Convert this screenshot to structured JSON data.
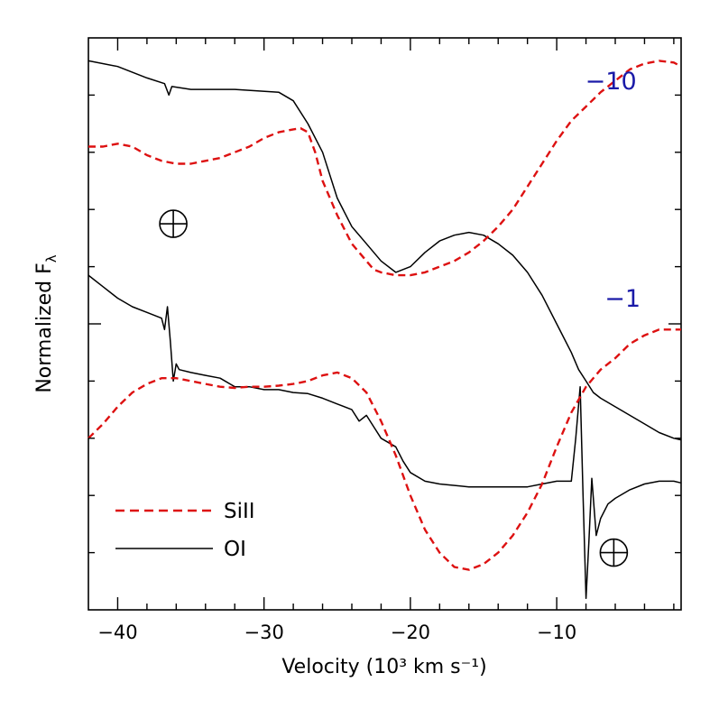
{
  "chart_data": {
    "type": "line",
    "xlabel": "Velocity (10³ km s⁻¹)",
    "ylabel": "Normalized F",
    "ylabel_subscript": "λ",
    "xlim": [
      -42,
      -1.5
    ],
    "ylim": [
      0,
      1
    ],
    "x_ticks": [
      -40,
      -30,
      -20,
      -10
    ],
    "x_tick_labels": [
      "−40",
      "−30",
      "−20",
      "−10"
    ],
    "y_ticks_labeled": false,
    "colors": {
      "SiII": "#dd1111",
      "OI": "#000000",
      "epoch": "#1a1aa8"
    },
    "epoch_labels": [
      {
        "text": "−10",
        "x": -6.3,
        "y": 0.91
      },
      {
        "text": "−1",
        "x": -5.5,
        "y": 0.53
      }
    ],
    "telluric_markers": [
      {
        "x": -36.2,
        "y": 0.675
      },
      {
        "x": -6.1,
        "y": 0.1
      }
    ],
    "legend": [
      {
        "label": "SiII",
        "style": "dashed",
        "color": "#dd1111"
      },
      {
        "label": "OI",
        "style": "solid",
        "color": "#000000"
      }
    ],
    "series": [
      {
        "name": "OI (day −10)",
        "epoch": "−10",
        "style": "solid",
        "color": "#000000",
        "points": [
          [
            -42,
            0.96
          ],
          [
            -40,
            0.95
          ],
          [
            -38,
            0.93
          ],
          [
            -36.8,
            0.92
          ],
          [
            -36.5,
            0.9
          ],
          [
            -36.3,
            0.915
          ],
          [
            -35,
            0.91
          ],
          [
            -32,
            0.91
          ],
          [
            -29,
            0.905
          ],
          [
            -28,
            0.89
          ],
          [
            -27,
            0.85
          ],
          [
            -26,
            0.8
          ],
          [
            -25,
            0.72
          ],
          [
            -24,
            0.67
          ],
          [
            -23,
            0.64
          ],
          [
            -22,
            0.61
          ],
          [
            -21,
            0.59
          ],
          [
            -20,
            0.6
          ],
          [
            -19,
            0.625
          ],
          [
            -18,
            0.645
          ],
          [
            -17,
            0.655
          ],
          [
            -16,
            0.66
          ],
          [
            -15,
            0.655
          ],
          [
            -14,
            0.64
          ],
          [
            -13,
            0.62
          ],
          [
            -12,
            0.59
          ],
          [
            -11,
            0.55
          ],
          [
            -10,
            0.5
          ],
          [
            -9,
            0.45
          ],
          [
            -8.5,
            0.42
          ],
          [
            -8,
            0.4
          ],
          [
            -7.5,
            0.38
          ],
          [
            -7,
            0.37
          ],
          [
            -6,
            0.355
          ],
          [
            -5,
            0.34
          ],
          [
            -4,
            0.325
          ],
          [
            -3,
            0.31
          ],
          [
            -2,
            0.3
          ],
          [
            -1.5,
            0.297
          ]
        ]
      },
      {
        "name": "SiII (day −10)",
        "epoch": "−10",
        "style": "dashed",
        "color": "#dd1111",
        "points": [
          [
            -42,
            0.81
          ],
          [
            -41,
            0.81
          ],
          [
            -40,
            0.815
          ],
          [
            -39,
            0.81
          ],
          [
            -38,
            0.795
          ],
          [
            -37,
            0.785
          ],
          [
            -36,
            0.78
          ],
          [
            -35,
            0.78
          ],
          [
            -34,
            0.785
          ],
          [
            -33,
            0.79
          ],
          [
            -32,
            0.8
          ],
          [
            -31,
            0.81
          ],
          [
            -30,
            0.825
          ],
          [
            -29,
            0.835
          ],
          [
            -28,
            0.84
          ],
          [
            -27.5,
            0.842
          ],
          [
            -27,
            0.835
          ],
          [
            -26.5,
            0.8
          ],
          [
            -26,
            0.75
          ],
          [
            -25,
            0.69
          ],
          [
            -24,
            0.64
          ],
          [
            -23,
            0.61
          ],
          [
            -22.5,
            0.595
          ],
          [
            -22,
            0.59
          ],
          [
            -21,
            0.585
          ],
          [
            -20,
            0.585
          ],
          [
            -19,
            0.59
          ],
          [
            -18,
            0.6
          ],
          [
            -17,
            0.61
          ],
          [
            -16,
            0.625
          ],
          [
            -15,
            0.645
          ],
          [
            -14,
            0.67
          ],
          [
            -13,
            0.7
          ],
          [
            -12,
            0.74
          ],
          [
            -11,
            0.78
          ],
          [
            -10,
            0.82
          ],
          [
            -9,
            0.855
          ],
          [
            -8,
            0.88
          ],
          [
            -7,
            0.905
          ],
          [
            -6,
            0.925
          ],
          [
            -5,
            0.945
          ],
          [
            -4,
            0.955
          ],
          [
            -3,
            0.96
          ],
          [
            -2,
            0.957
          ],
          [
            -1.5,
            0.95
          ]
        ]
      },
      {
        "name": "OI (day −1)",
        "epoch": "−1",
        "style": "solid",
        "color": "#000000",
        "points": [
          [
            -42,
            0.585
          ],
          [
            -41,
            0.565
          ],
          [
            -40,
            0.545
          ],
          [
            -39,
            0.53
          ],
          [
            -38,
            0.52
          ],
          [
            -37,
            0.51
          ],
          [
            -36.8,
            0.49
          ],
          [
            -36.6,
            0.53
          ],
          [
            -36.4,
            0.47
          ],
          [
            -36.2,
            0.4
          ],
          [
            -36,
            0.43
          ],
          [
            -35.8,
            0.42
          ],
          [
            -35,
            0.415
          ],
          [
            -34,
            0.41
          ],
          [
            -33,
            0.405
          ],
          [
            -32,
            0.39
          ],
          [
            -31,
            0.39
          ],
          [
            -30,
            0.385
          ],
          [
            -29,
            0.385
          ],
          [
            -28,
            0.38
          ],
          [
            -27,
            0.378
          ],
          [
            -26,
            0.37
          ],
          [
            -25,
            0.36
          ],
          [
            -24,
            0.35
          ],
          [
            -23.5,
            0.33
          ],
          [
            -23,
            0.34
          ],
          [
            -22.5,
            0.32
          ],
          [
            -22,
            0.3
          ],
          [
            -21,
            0.285
          ],
          [
            -20.5,
            0.26
          ],
          [
            -20,
            0.24
          ],
          [
            -19,
            0.225
          ],
          [
            -18,
            0.22
          ],
          [
            -16,
            0.215
          ],
          [
            -14,
            0.215
          ],
          [
            -12,
            0.215
          ],
          [
            -11,
            0.22
          ],
          [
            -10,
            0.225
          ],
          [
            -9,
            0.225
          ],
          [
            -8.7,
            0.3
          ],
          [
            -8.4,
            0.39
          ],
          [
            -8.2,
            0.2
          ],
          [
            -8,
            0.02
          ],
          [
            -7.8,
            0.12
          ],
          [
            -7.6,
            0.23
          ],
          [
            -7.3,
            0.13
          ],
          [
            -7,
            0.16
          ],
          [
            -6.5,
            0.185
          ],
          [
            -6,
            0.195
          ],
          [
            -5,
            0.21
          ],
          [
            -4,
            0.22
          ],
          [
            -3,
            0.225
          ],
          [
            -2,
            0.225
          ],
          [
            -1.5,
            0.222
          ]
        ]
      },
      {
        "name": "SiII (day −1)",
        "epoch": "−1",
        "style": "dashed",
        "color": "#dd1111",
        "points": [
          [
            -42,
            0.3
          ],
          [
            -41,
            0.325
          ],
          [
            -40,
            0.355
          ],
          [
            -39,
            0.38
          ],
          [
            -38,
            0.395
          ],
          [
            -37,
            0.405
          ],
          [
            -36,
            0.405
          ],
          [
            -35,
            0.4
          ],
          [
            -34,
            0.395
          ],
          [
            -33,
            0.39
          ],
          [
            -32,
            0.388
          ],
          [
            -31,
            0.39
          ],
          [
            -30,
            0.39
          ],
          [
            -29,
            0.392
          ],
          [
            -28,
            0.395
          ],
          [
            -27,
            0.4
          ],
          [
            -26,
            0.41
          ],
          [
            -25,
            0.415
          ],
          [
            -24,
            0.405
          ],
          [
            -23,
            0.38
          ],
          [
            -22,
            0.33
          ],
          [
            -21,
            0.27
          ],
          [
            -20,
            0.2
          ],
          [
            -19,
            0.14
          ],
          [
            -18,
            0.1
          ],
          [
            -17,
            0.075
          ],
          [
            -16,
            0.07
          ],
          [
            -15,
            0.08
          ],
          [
            -14,
            0.1
          ],
          [
            -13,
            0.13
          ],
          [
            -12,
            0.17
          ],
          [
            -11,
            0.22
          ],
          [
            -10,
            0.285
          ],
          [
            -9,
            0.345
          ],
          [
            -8,
            0.39
          ],
          [
            -7,
            0.42
          ],
          [
            -6,
            0.44
          ],
          [
            -5,
            0.465
          ],
          [
            -4,
            0.48
          ],
          [
            -3,
            0.49
          ],
          [
            -2,
            0.49
          ],
          [
            -1.5,
            0.49
          ]
        ]
      }
    ]
  }
}
